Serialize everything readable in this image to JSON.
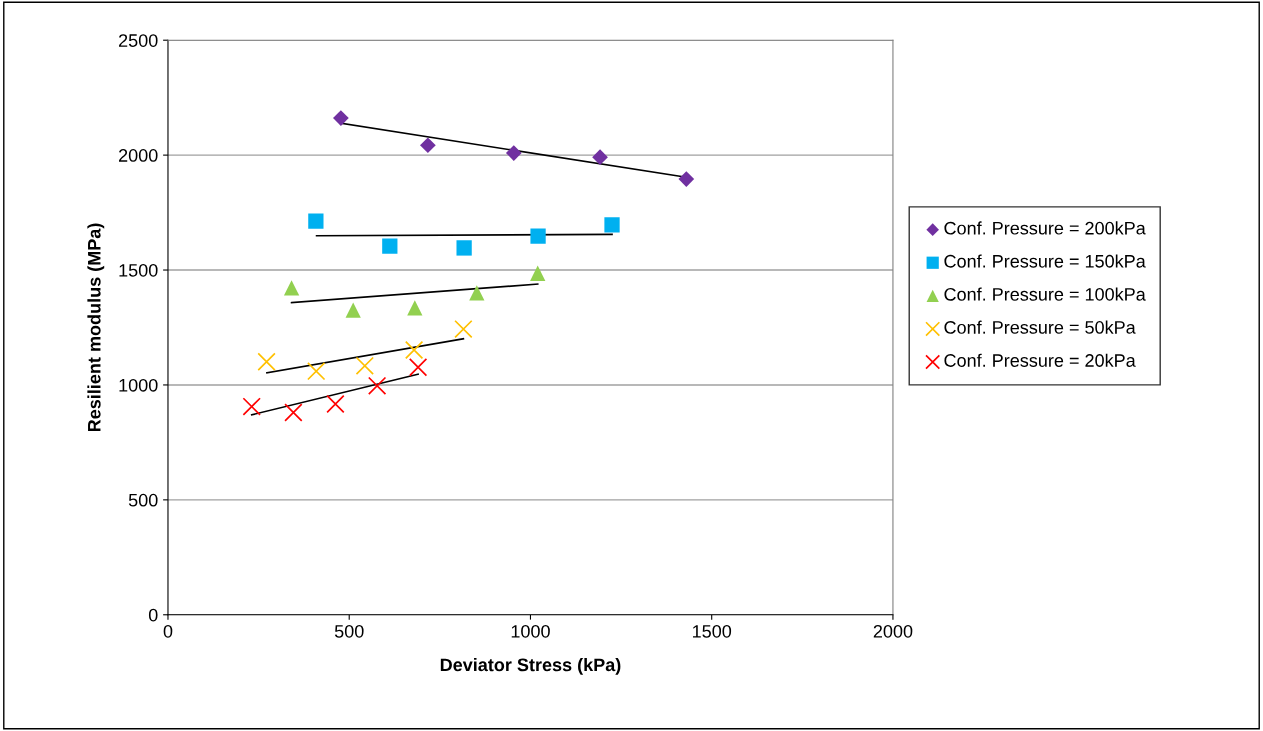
{
  "chart_data": {
    "type": "scatter",
    "xlabel": "Deviator Stress (kPa)",
    "ylabel": "Resilient modulus (MPa)",
    "xlim": [
      0,
      2000
    ],
    "xticks": [
      0,
      500,
      1000,
      1500,
      2000
    ],
    "ylim": [
      0,
      2500
    ],
    "yticks": [
      0,
      500,
      1000,
      1500,
      2000,
      2500
    ],
    "grid": "y",
    "legend": "right",
    "series": [
      {
        "name": "Conf. Pressure = 200kPa",
        "color": "#7030a0",
        "marker": "diamond",
        "x": [
          477,
          717,
          954,
          1192,
          1430
        ],
        "values": [
          2161,
          2043,
          2009,
          1991,
          1896
        ]
      },
      {
        "name": "Conf. Pressure = 150kPa",
        "color": "#00b0f0",
        "marker": "square",
        "x": [
          408,
          612,
          817,
          1021,
          1225
        ],
        "values": [
          1713,
          1604,
          1596,
          1648,
          1696
        ]
      },
      {
        "name": "Conf. Pressure = 100kPa",
        "color": "#92d050",
        "marker": "triangle",
        "x": [
          341,
          511,
          681,
          852,
          1020
        ],
        "values": [
          1422,
          1326,
          1335,
          1401,
          1486
        ]
      },
      {
        "name": "Conf. Pressure = 50kPa",
        "color": "#ffc000",
        "marker": "cross",
        "x": [
          272,
          409,
          543,
          679,
          815
        ],
        "values": [
          1101,
          1060,
          1083,
          1152,
          1243
        ]
      },
      {
        "name": "Conf. Pressure = 20kPa",
        "color": "#ff0000",
        "marker": "cross",
        "x": [
          231,
          346,
          462,
          577,
          690
        ],
        "values": [
          906,
          880,
          917,
          996,
          1077
        ]
      },
      {
        "type": "line",
        "color": "#000000",
        "marker": "none",
        "x": [
          479,
          1432
        ],
        "values": [
          2138,
          1903
        ]
      },
      {
        "type": "line",
        "color": "#000000",
        "marker": "none",
        "x": [
          410,
          1225
        ],
        "values": [
          1649,
          1655
        ]
      },
      {
        "type": "line",
        "color": "#000000",
        "marker": "none",
        "x": [
          341,
          1020
        ],
        "values": [
          1358,
          1439
        ]
      },
      {
        "type": "line",
        "color": "#000000",
        "marker": "none",
        "x": [
          273,
          815
        ],
        "values": [
          1053,
          1201
        ]
      },
      {
        "type": "line",
        "color": "#000000",
        "marker": "none",
        "x": [
          231,
          690
        ],
        "values": [
          870,
          1047
        ]
      }
    ]
  }
}
